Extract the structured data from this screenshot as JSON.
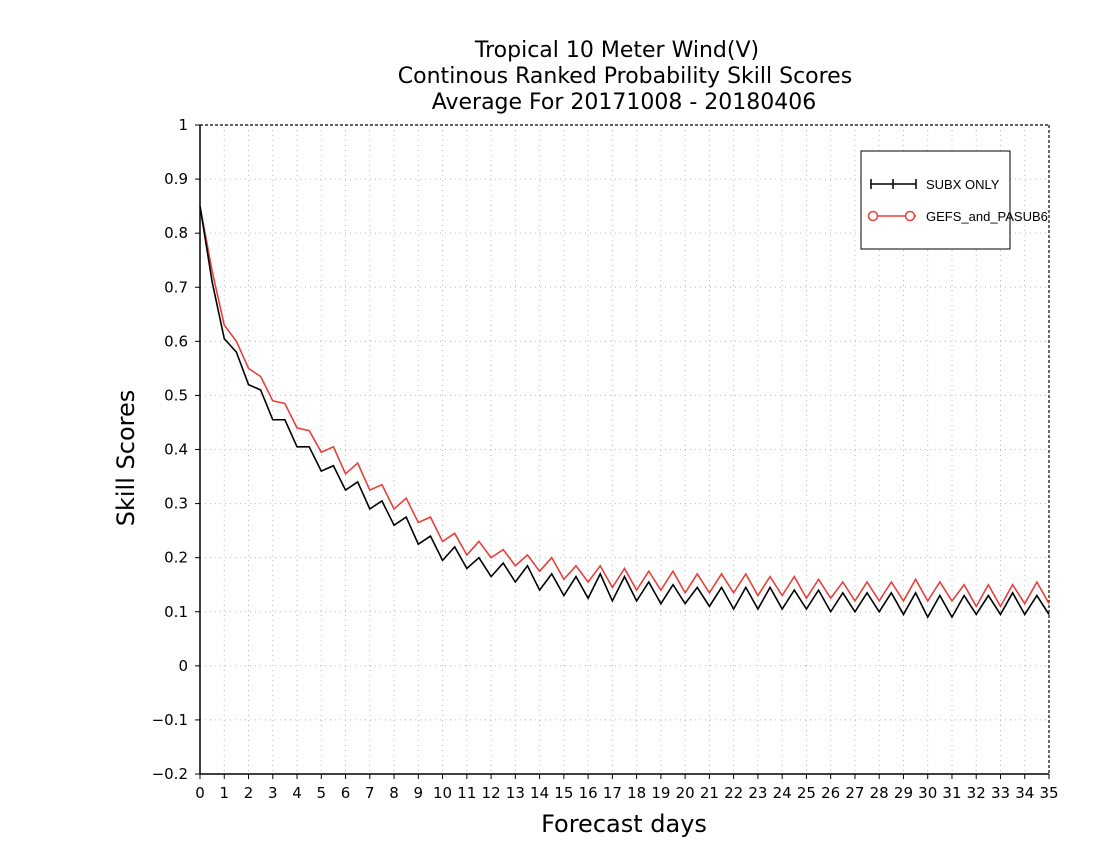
{
  "chart_data": {
    "type": "line",
    "title": [
      "Tropical 10 Meter Wind(V)",
      "Continous Ranked Probability Skill Scores",
      "Average For 20171008 - 20180406"
    ],
    "xlabel": "Forecast days",
    "ylabel": "Skill Scores",
    "xlim": [
      0,
      35
    ],
    "ylim": [
      -0.2,
      1
    ],
    "x_ticks": [
      0,
      1,
      2,
      3,
      4,
      5,
      6,
      7,
      8,
      9,
      10,
      11,
      12,
      13,
      14,
      15,
      16,
      17,
      18,
      19,
      20,
      21,
      22,
      23,
      24,
      25,
      26,
      27,
      28,
      29,
      30,
      31,
      32,
      33,
      34,
      35
    ],
    "y_ticks": [
      -0.2,
      -0.1,
      0,
      0.1,
      0.2,
      0.3,
      0.4,
      0.5,
      0.6,
      0.7,
      0.8,
      0.9,
      1
    ],
    "y_tick_labels": [
      "−0.2",
      "−0.1",
      "0",
      "0.1",
      "0.2",
      "0.3",
      "0.4",
      "0.5",
      "0.6",
      "0.7",
      "0.8",
      "0.9",
      "1"
    ],
    "grid": true,
    "legend_position": "top-right",
    "x": [
      0,
      0.5,
      1,
      1.5,
      2,
      2.5,
      3,
      3.5,
      4,
      4.5,
      5,
      5.5,
      6,
      6.5,
      7,
      7.5,
      8,
      8.5,
      9,
      9.5,
      10,
      10.5,
      11,
      11.5,
      12,
      12.5,
      13,
      13.5,
      14,
      14.5,
      15,
      15.5,
      16,
      16.5,
      17,
      17.5,
      18,
      18.5,
      19,
      19.5,
      20,
      20.5,
      21,
      21.5,
      22,
      22.5,
      23,
      23.5,
      24,
      24.5,
      25,
      25.5,
      26,
      26.5,
      27,
      27.5,
      28,
      28.5,
      29,
      29.5,
      30,
      30.5,
      31,
      31.5,
      32,
      32.5,
      33,
      33.5,
      34,
      34.5,
      35
    ],
    "series": [
      {
        "name": "SUBX ONLY",
        "color": "#000000",
        "marker": "plus",
        "values": [
          0.85,
          0.71,
          0.605,
          0.58,
          0.52,
          0.51,
          0.455,
          0.455,
          0.405,
          0.405,
          0.36,
          0.37,
          0.325,
          0.34,
          0.29,
          0.305,
          0.26,
          0.275,
          0.225,
          0.24,
          0.195,
          0.22,
          0.18,
          0.2,
          0.165,
          0.19,
          0.155,
          0.185,
          0.14,
          0.17,
          0.13,
          0.165,
          0.125,
          0.17,
          0.12,
          0.165,
          0.12,
          0.155,
          0.115,
          0.15,
          0.115,
          0.145,
          0.11,
          0.145,
          0.105,
          0.145,
          0.105,
          0.145,
          0.105,
          0.14,
          0.105,
          0.14,
          0.1,
          0.135,
          0.1,
          0.135,
          0.1,
          0.135,
          0.095,
          0.135,
          0.09,
          0.13,
          0.09,
          0.13,
          0.095,
          0.13,
          0.095,
          0.135,
          0.095,
          0.13,
          0.095
        ]
      },
      {
        "name": "GEFS_and_PASUB6",
        "color": "#e8403a",
        "marker": "circle",
        "values": [
          0.85,
          0.73,
          0.63,
          0.6,
          0.55,
          0.535,
          0.49,
          0.485,
          0.44,
          0.435,
          0.395,
          0.405,
          0.355,
          0.375,
          0.325,
          0.335,
          0.29,
          0.31,
          0.265,
          0.275,
          0.23,
          0.245,
          0.205,
          0.23,
          0.2,
          0.215,
          0.185,
          0.205,
          0.175,
          0.2,
          0.16,
          0.185,
          0.155,
          0.185,
          0.145,
          0.18,
          0.14,
          0.175,
          0.14,
          0.175,
          0.135,
          0.17,
          0.135,
          0.17,
          0.135,
          0.17,
          0.13,
          0.165,
          0.13,
          0.165,
          0.125,
          0.16,
          0.125,
          0.155,
          0.12,
          0.155,
          0.12,
          0.155,
          0.12,
          0.16,
          0.12,
          0.155,
          0.12,
          0.15,
          0.11,
          0.15,
          0.11,
          0.15,
          0.115,
          0.155,
          0.115
        ]
      }
    ]
  }
}
